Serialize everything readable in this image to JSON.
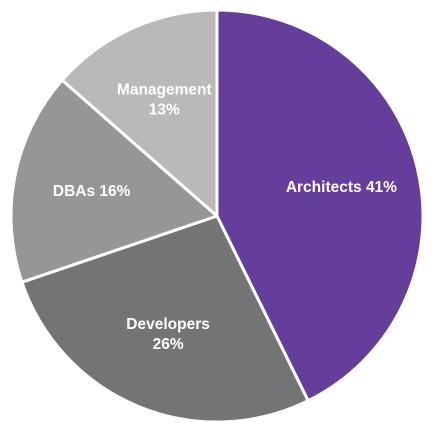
{
  "chart_data": {
    "type": "pie",
    "title": "",
    "start_angle_deg": 0,
    "direction": "clockwise",
    "slices": [
      {
        "label_lines": [
          "Architects 41%"
        ],
        "name": "Architects",
        "value": 41,
        "color": "#653e9b"
      },
      {
        "label_lines": [
          "Developers",
          "26%"
        ],
        "name": "Developers",
        "value": 26,
        "color": "#737476"
      },
      {
        "label_lines": [
          "DBAs 16%"
        ],
        "name": "DBAs",
        "value": 16,
        "color": "#959698"
      },
      {
        "label_lines": [
          "Management",
          "13%"
        ],
        "name": "Management",
        "value": 13,
        "color": "#b9b9ba"
      }
    ]
  }
}
